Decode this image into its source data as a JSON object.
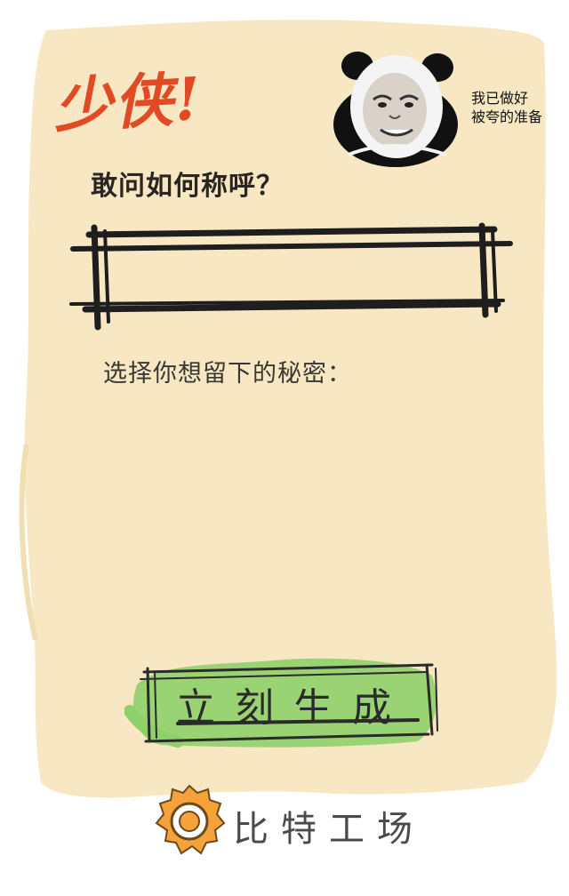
{
  "header": {
    "title": "少侠!",
    "meme_caption": [
      "我已做好",
      "被夸的准备"
    ]
  },
  "form": {
    "name_question": "敢问如何称呼？",
    "name_value": "",
    "secret_label": "选择你想留下的秘密："
  },
  "actions": {
    "generate_label": "立刻生成"
  },
  "footer": {
    "brand_name": "比特工场"
  },
  "colors": {
    "paper": "#f7e8c3",
    "title_red": "#e04a24",
    "button_green": "#8fd06a",
    "brand_orange": "#f5a23a"
  },
  "icons": {
    "meme": "panda-meme-icon",
    "brand": "gear-logo-icon"
  }
}
